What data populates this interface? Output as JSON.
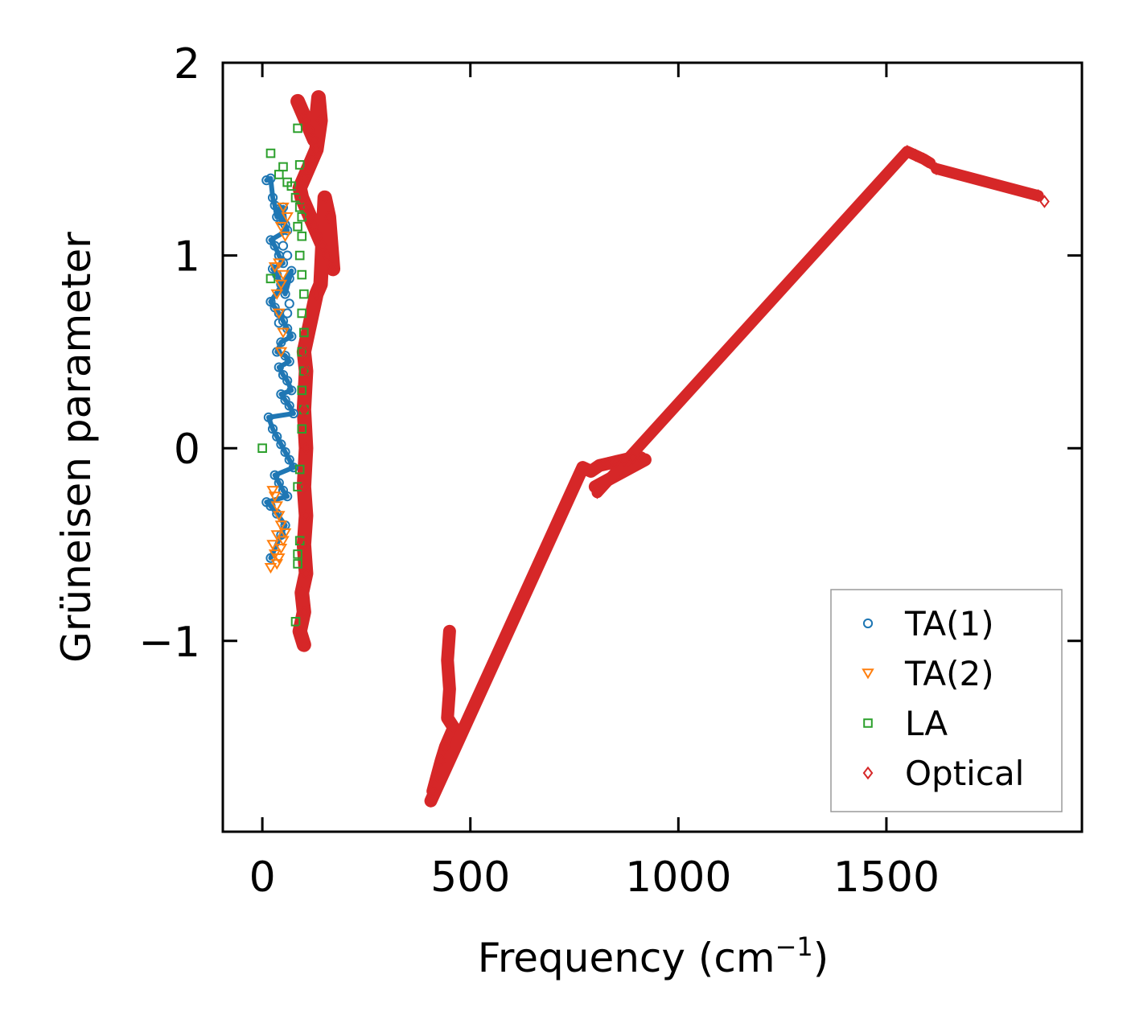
{
  "chart_data": {
    "type": "scatter",
    "title": "",
    "xlabel": "Frequency (cm",
    "xlabel_sup": "−1",
    "xlabel_close": ")",
    "ylabel": "Grüneisen parameter",
    "xlim": [
      -95,
      1970
    ],
    "ylim": [
      -1.99,
      2.0
    ],
    "xticks": [
      0,
      500,
      1000,
      1500
    ],
    "xtick_labels": [
      "0",
      "500",
      "1000",
      "1500"
    ],
    "yticks": [
      -1,
      0,
      1,
      2
    ],
    "ytick_labels": [
      "−1",
      "0",
      "1",
      "2"
    ],
    "legend_position": "lower-right",
    "series": [
      {
        "name": "TA(1)",
        "marker": "circle",
        "color": "#1f77b4",
        "points": [
          [
            10,
            1.39
          ],
          [
            20,
            1.4
          ],
          [
            25,
            1.3
          ],
          [
            30,
            1.26
          ],
          [
            35,
            1.2
          ],
          [
            40,
            1.24
          ],
          [
            45,
            1.18
          ],
          [
            50,
            1.25
          ],
          [
            55,
            1.16
          ],
          [
            60,
            1.13
          ],
          [
            20,
            1.08
          ],
          [
            30,
            1.05
          ],
          [
            40,
            1.0
          ],
          [
            50,
            0.96
          ],
          [
            25,
            0.93
          ],
          [
            35,
            0.9
          ],
          [
            45,
            0.85
          ],
          [
            55,
            0.8
          ],
          [
            65,
            0.88
          ],
          [
            70,
            0.92
          ],
          [
            20,
            0.76
          ],
          [
            30,
            0.73
          ],
          [
            40,
            0.7
          ],
          [
            50,
            0.66
          ],
          [
            60,
            0.62
          ],
          [
            70,
            0.58
          ],
          [
            45,
            0.55
          ],
          [
            35,
            0.5
          ],
          [
            55,
            0.48
          ],
          [
            65,
            0.45
          ],
          [
            40,
            0.42
          ],
          [
            50,
            0.38
          ],
          [
            60,
            0.35
          ],
          [
            70,
            0.3
          ],
          [
            45,
            0.28
          ],
          [
            55,
            0.25
          ],
          [
            65,
            0.22
          ],
          [
            75,
            0.18
          ],
          [
            15,
            0.16
          ],
          [
            25,
            0.1
          ],
          [
            35,
            0.06
          ],
          [
            45,
            0.02
          ],
          [
            55,
            -0.02
          ],
          [
            65,
            -0.06
          ],
          [
            75,
            -0.1
          ],
          [
            30,
            -0.14
          ],
          [
            40,
            -0.18
          ],
          [
            50,
            -0.22
          ],
          [
            60,
            -0.25
          ],
          [
            10,
            -0.28
          ],
          [
            20,
            -0.3
          ],
          [
            35,
            -0.34
          ],
          [
            55,
            -0.4
          ],
          [
            45,
            -0.45
          ],
          [
            20,
            -0.57
          ],
          [
            60,
            0.7
          ],
          [
            65,
            0.75
          ],
          [
            60,
            1.0
          ],
          [
            50,
            1.05
          ],
          [
            40,
            0.65
          ]
        ]
      },
      {
        "name": "TA(2)",
        "marker": "triangle",
        "color": "#ff7f0e",
        "points": [
          [
            30,
            0.94
          ],
          [
            40,
            0.96
          ],
          [
            45,
            0.85
          ],
          [
            35,
            0.8
          ],
          [
            50,
            0.9
          ],
          [
            40,
            0.7
          ],
          [
            50,
            0.6
          ],
          [
            45,
            0.5
          ],
          [
            55,
            1.1
          ],
          [
            60,
            1.2
          ],
          [
            50,
            1.25
          ],
          [
            45,
            1.15
          ],
          [
            25,
            -0.22
          ],
          [
            30,
            -0.25
          ],
          [
            35,
            -0.3
          ],
          [
            40,
            -0.35
          ],
          [
            45,
            -0.4
          ],
          [
            35,
            -0.45
          ],
          [
            25,
            -0.5
          ],
          [
            30,
            -0.55
          ],
          [
            40,
            -0.57
          ],
          [
            35,
            -0.6
          ],
          [
            20,
            -0.62
          ],
          [
            45,
            -0.52
          ],
          [
            50,
            -0.48
          ],
          [
            55,
            -0.44
          ]
        ]
      },
      {
        "name": "LA",
        "marker": "square",
        "color": "#2ca02c",
        "points": [
          [
            20,
            1.53
          ],
          [
            40,
            1.42
          ],
          [
            50,
            1.46
          ],
          [
            60,
            1.38
          ],
          [
            70,
            1.36
          ],
          [
            85,
            1.66
          ],
          [
            90,
            1.47
          ],
          [
            80,
            1.3
          ],
          [
            90,
            1.25
          ],
          [
            95,
            1.2
          ],
          [
            85,
            1.15
          ],
          [
            95,
            1.1
          ],
          [
            90,
            1.0
          ],
          [
            95,
            0.9
          ],
          [
            100,
            0.8
          ],
          [
            95,
            0.7
          ],
          [
            100,
            0.6
          ],
          [
            95,
            0.5
          ],
          [
            100,
            0.4
          ],
          [
            95,
            0.3
          ],
          [
            100,
            0.2
          ],
          [
            95,
            0.1
          ],
          [
            20,
            0.88
          ],
          [
            0,
            0.0
          ],
          [
            90,
            -0.11
          ],
          [
            85,
            -0.2
          ],
          [
            90,
            -0.48
          ],
          [
            85,
            -0.55
          ],
          [
            85,
            -0.6
          ],
          [
            80,
            -0.9
          ]
        ]
      },
      {
        "name": "Optical",
        "marker": "diamond",
        "color": "#d62728",
        "points": [
          [
            85,
            1.8
          ],
          [
            95,
            1.75
          ],
          [
            105,
            1.7
          ],
          [
            115,
            1.65
          ],
          [
            125,
            1.6
          ],
          [
            135,
            1.82
          ],
          [
            140,
            1.7
          ],
          [
            130,
            1.55
          ],
          [
            120,
            1.5
          ],
          [
            110,
            1.45
          ],
          [
            100,
            1.4
          ],
          [
            90,
            1.35
          ],
          [
            95,
            1.3
          ],
          [
            105,
            1.25
          ],
          [
            115,
            1.2
          ],
          [
            125,
            1.15
          ],
          [
            135,
            1.1
          ],
          [
            145,
            1.05
          ],
          [
            155,
            1.0
          ],
          [
            165,
            0.95
          ],
          [
            170,
            0.93
          ],
          [
            160,
            1.2
          ],
          [
            150,
            1.3
          ],
          [
            140,
            0.85
          ],
          [
            130,
            0.8
          ],
          [
            100,
            0.5
          ],
          [
            105,
            0.4
          ],
          [
            100,
            0.2
          ],
          [
            105,
            0.0
          ],
          [
            100,
            -0.2
          ],
          [
            105,
            -0.35
          ],
          [
            100,
            -0.5
          ],
          [
            105,
            -0.65
          ],
          [
            95,
            -0.75
          ],
          [
            100,
            -0.85
          ],
          [
            90,
            -0.95
          ],
          [
            100,
            -1.02
          ],
          [
            450,
            -0.95
          ],
          [
            445,
            -1.1
          ],
          [
            450,
            -1.25
          ],
          [
            445,
            -1.4
          ],
          [
            460,
            -1.45
          ],
          [
            440,
            -1.55
          ],
          [
            430,
            -1.62
          ],
          [
            420,
            -1.7
          ],
          [
            410,
            -1.78
          ],
          [
            405,
            -1.83
          ],
          [
            770,
            -0.1
          ],
          [
            790,
            -0.12
          ],
          [
            810,
            -0.09
          ],
          [
            830,
            -0.08
          ],
          [
            850,
            -0.07
          ],
          [
            870,
            -0.06
          ],
          [
            890,
            -0.05
          ],
          [
            910,
            -0.05
          ],
          [
            920,
            -0.06
          ],
          [
            800,
            -0.2
          ],
          [
            805,
            -0.23
          ],
          [
            1550,
            1.54
          ],
          [
            1570,
            1.52
          ],
          [
            1590,
            1.5
          ],
          [
            1605,
            1.48
          ],
          [
            1620,
            1.45
          ],
          [
            1865,
            1.31
          ],
          [
            1880,
            1.28
          ]
        ]
      }
    ]
  }
}
